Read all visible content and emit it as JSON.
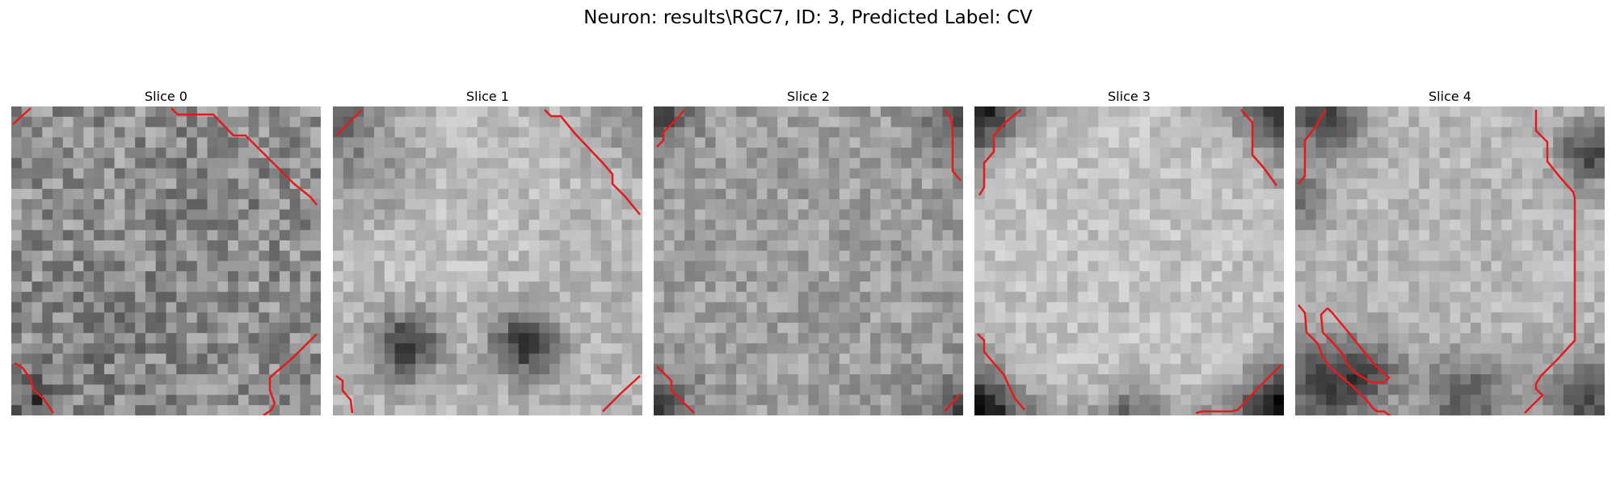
{
  "figure": {
    "title": "Neuron: results\\RGC7, ID: 3, Predicted Label: CV"
  },
  "slices": [
    {
      "label": "Slice 0"
    },
    {
      "label": "Slice 1"
    },
    {
      "label": "Slice 2"
    },
    {
      "label": "Slice 3"
    },
    {
      "label": "Slice 4"
    }
  ],
  "colors": {
    "contour": "#e41a1c",
    "background": "#ffffff"
  }
}
